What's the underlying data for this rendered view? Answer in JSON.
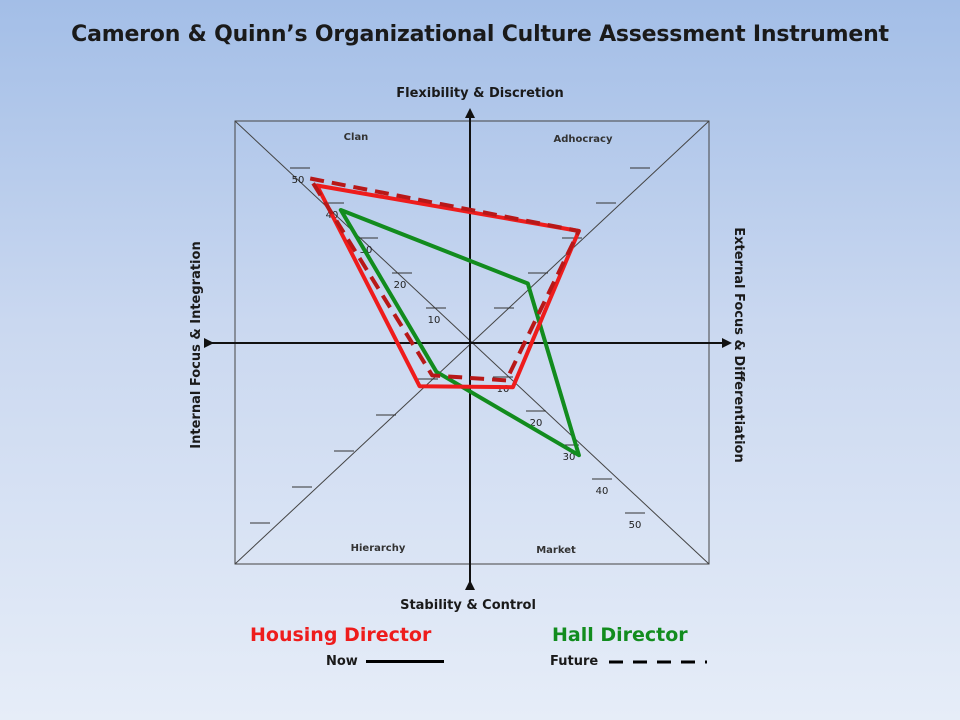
{
  "title": "Cameron & Quinn’s Organizational Culture Assessment Instrument",
  "axes": {
    "top": "Flexibility & Discretion",
    "bottom": "Stability & Control",
    "left": "Internal Focus & Integration",
    "right": "External Focus & Differentiation"
  },
  "quadrants": {
    "clan": "Clan",
    "adhocracy": "Adhocracy",
    "hierarchy": "Hierarchy",
    "market": "Market"
  },
  "legend": {
    "housing": {
      "label": "Housing Director",
      "color": "#ee1c1c"
    },
    "hall": {
      "label": "Hall Director",
      "color": "#128c1e"
    },
    "now_label": "Now",
    "future_label": "Future"
  },
  "chart_data": {
    "type": "radar",
    "axes_order": [
      "Clan",
      "Adhocracy",
      "Market",
      "Hierarchy"
    ],
    "tick_values": [
      10,
      20,
      30,
      40,
      50
    ],
    "series": [
      {
        "name": "Housing Director Now",
        "color": "#ee1c1c",
        "style": "solid",
        "values": [
          45,
          32,
          13,
          12
        ]
      },
      {
        "name": "Housing Director Future",
        "color": "#b81818",
        "style": "dashed",
        "values": [
          47,
          32,
          11,
          9
        ]
      },
      {
        "name": "Hall Director Now",
        "color": "#128c1e",
        "style": "solid",
        "values": [
          38,
          17,
          33,
          8
        ]
      }
    ]
  }
}
